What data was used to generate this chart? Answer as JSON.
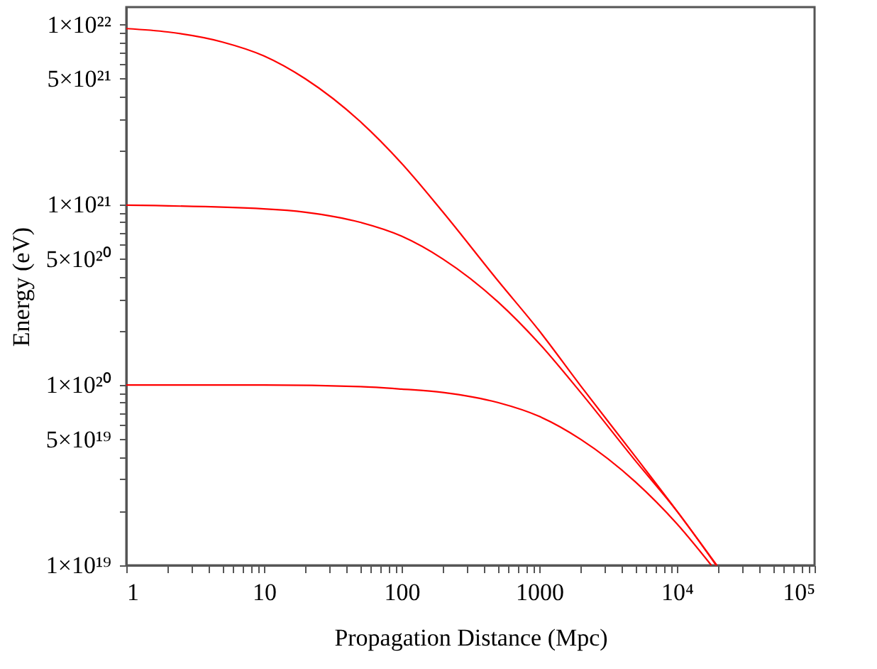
{
  "chart_data": {
    "type": "line",
    "xlabel": "Propagation Distance (Mpc)",
    "ylabel": "Energy (eV)",
    "log": "xy",
    "grid": false,
    "legend": false,
    "marker": "none",
    "line_style": "solid",
    "xlim": [
      1,
      100000
    ],
    "ylim": [
      1e+19,
      1.25e+22
    ],
    "xticks": [
      1,
      {
        "value": 2,
        "label": null
      },
      {
        "value": 3,
        "label": null
      },
      {
        "value": 4,
        "label": null
      },
      {
        "value": 5,
        "label": null
      },
      {
        "value": 6,
        "label": null
      },
      {
        "value": 7,
        "label": null
      },
      {
        "value": 8,
        "label": null
      },
      {
        "value": 9,
        "label": null
      },
      10,
      {
        "value": 20,
        "label": null
      },
      {
        "value": 30,
        "label": null
      },
      {
        "value": 40,
        "label": null
      },
      {
        "value": 50,
        "label": null
      },
      {
        "value": 60,
        "label": null
      },
      {
        "value": 70,
        "label": null
      },
      {
        "value": 80,
        "label": null
      },
      {
        "value": 90,
        "label": null
      },
      100,
      {
        "value": 200,
        "label": null
      },
      {
        "value": 300,
        "label": null
      },
      {
        "value": 400,
        "label": null
      },
      {
        "value": 500,
        "label": null
      },
      {
        "value": 600,
        "label": null
      },
      {
        "value": 700,
        "label": null
      },
      {
        "value": 800,
        "label": null
      },
      {
        "value": 900,
        "label": null
      },
      1000,
      {
        "value": 2000,
        "label": null
      },
      {
        "value": 3000,
        "label": null
      },
      {
        "value": 4000,
        "label": null
      },
      {
        "value": 5000,
        "label": null
      },
      {
        "value": 6000,
        "label": null
      },
      {
        "value": 7000,
        "label": null
      },
      {
        "value": 8000,
        "label": null
      },
      {
        "value": 9000,
        "label": null
      },
      {
        "value": 10000,
        "label": "10⁴"
      },
      {
        "value": 20000,
        "label": null
      },
      {
        "value": 30000,
        "label": null
      },
      {
        "value": 40000,
        "label": null
      },
      {
        "value": 50000,
        "label": null
      },
      {
        "value": 60000,
        "label": null
      },
      {
        "value": 70000,
        "label": null
      },
      {
        "value": 80000,
        "label": null
      },
      {
        "value": 90000,
        "label": null
      },
      {
        "value": 100000,
        "label": "10⁵"
      }
    ],
    "yticks": [
      {
        "value": 1e+19,
        "label": "1×10¹⁹"
      },
      {
        "value": 2e+19,
        "label": null
      },
      {
        "value": 3e+19,
        "label": null
      },
      {
        "value": 4e+19,
        "label": null
      },
      {
        "value": 5e+19,
        "label": "5×10¹⁹"
      },
      {
        "value": 6e+19,
        "label": null
      },
      {
        "value": 7e+19,
        "label": null
      },
      {
        "value": 8e+19,
        "label": null
      },
      {
        "value": 9e+19,
        "label": null
      },
      {
        "value": 1e+20,
        "label": "1×10²⁰"
      },
      {
        "value": 2e+20,
        "label": null
      },
      {
        "value": 3e+20,
        "label": null
      },
      {
        "value": 4e+20,
        "label": null
      },
      {
        "value": 5e+20,
        "label": "5×10²⁰"
      },
      {
        "value": 6e+20,
        "label": null
      },
      {
        "value": 7e+20,
        "label": null
      },
      {
        "value": 8e+20,
        "label": null
      },
      {
        "value": 9e+20,
        "label": null
      },
      {
        "value": 1e+21,
        "label": "1×10²¹"
      },
      {
        "value": 2e+21,
        "label": null
      },
      {
        "value": 3e+21,
        "label": null
      },
      {
        "value": 4e+21,
        "label": null
      },
      {
        "value": 5e+21,
        "label": "5×10²¹"
      },
      {
        "value": 6e+21,
        "label": null
      },
      {
        "value": 7e+21,
        "label": null
      },
      {
        "value": 8e+21,
        "label": null
      },
      {
        "value": 9e+21,
        "label": null
      },
      {
        "value": 1e+22,
        "label": "1×10²²"
      }
    ],
    "series": [
      {
        "color": "#ff0000",
        "x": [
          1,
          2,
          5,
          10,
          20,
          50,
          100,
          200,
          500,
          1000,
          2000,
          5000,
          10000,
          19500
        ],
        "values": [
          9.5e+21,
          9.1e+21,
          8e+21,
          6.7e+21,
          5e+21,
          2.9e+21,
          1.7e+21,
          9.1e+20,
          3.8e+20,
          2e+20,
          9.9e+19,
          4e+19,
          2e+19,
          1e+19
        ]
      },
      {
        "color": "#ff0000",
        "x": [
          1,
          10,
          20,
          50,
          100,
          200,
          500,
          1000,
          2000,
          5000,
          10000,
          19300
        ],
        "values": [
          9.95e+20,
          9.5e+20,
          9.1e+20,
          8e+20,
          6.7e+20,
          5e+20,
          2.9e+20,
          1.7e+20,
          9.1e+19,
          3.8e+19,
          2e+19,
          1e+19
        ]
      },
      {
        "color": "#ff0000",
        "x": [
          1,
          10,
          50,
          100,
          200,
          500,
          1000,
          2000,
          5000,
          10000,
          17800
        ],
        "values": [
          1e+20,
          1e+20,
          9.8e+19,
          9.5e+19,
          9.1e+19,
          8e+19,
          6.7e+19,
          5e+19,
          2.9e+19,
          1.7e+19,
          1e+19
        ]
      }
    ]
  }
}
